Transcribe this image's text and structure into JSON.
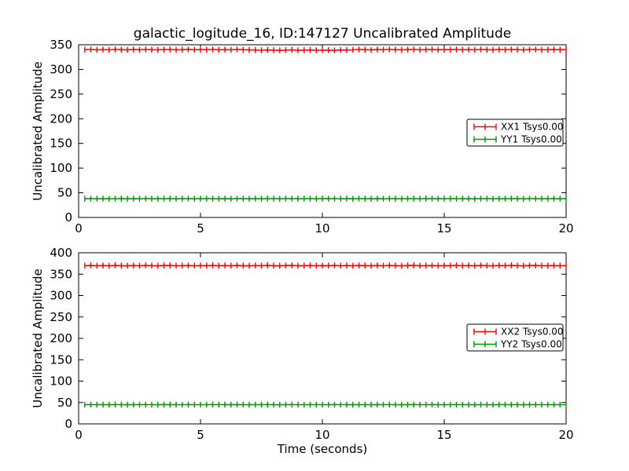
{
  "figure": {
    "title": "galactic_logitude_16, ID:147127 Uncalibrated Amplitude",
    "background": "#ffffff",
    "axis_color": "#000000"
  },
  "chart_data": [
    {
      "type": "line",
      "subplot": "top",
      "xlabel": "",
      "ylabel": "Uncalibrated Amplitude",
      "xlim": [
        0,
        20
      ],
      "ylim": [
        0,
        350
      ],
      "xticks": [
        0,
        5,
        10,
        15,
        20
      ],
      "yticks": [
        0,
        50,
        100,
        150,
        200,
        250,
        300,
        350
      ],
      "grid": false,
      "legend_position": "center right",
      "x": [
        0.25,
        0.5,
        0.75,
        1,
        1.25,
        1.5,
        1.75,
        2,
        2.25,
        2.5,
        2.75,
        3,
        3.25,
        3.5,
        3.75,
        4,
        4.25,
        4.5,
        4.75,
        5,
        5.25,
        5.5,
        5.75,
        6,
        6.25,
        6.5,
        6.75,
        7,
        7.25,
        7.5,
        7.75,
        8,
        8.25,
        8.5,
        8.75,
        9,
        9.25,
        9.5,
        9.75,
        10,
        10.25,
        10.5,
        10.75,
        11,
        11.25,
        11.5,
        11.75,
        12,
        12.25,
        12.5,
        12.75,
        13,
        13.25,
        13.5,
        13.75,
        14,
        14.25,
        14.5,
        14.75,
        15,
        15.25,
        15.5,
        15.75,
        16,
        16.25,
        16.5,
        16.75,
        17,
        17.25,
        17.5,
        17.75,
        18,
        18.25,
        18.5,
        18.75,
        19,
        19.25,
        19.5,
        19.75,
        20
      ],
      "series": [
        {
          "name": "XX1 Tsys0.00",
          "color": "#ff0000",
          "yerr": 6,
          "values": [
            340,
            340.4,
            339.7,
            340.2,
            339.6,
            340.5,
            340,
            339.5,
            340.3,
            339.8,
            340.4,
            340,
            339.6,
            340.2,
            340.5,
            339.7,
            340,
            340.3,
            339.8,
            340.1,
            340,
            340.4,
            339.7,
            340.2,
            339.6,
            340.5,
            340,
            339.5,
            339.3,
            338.8,
            339.4,
            339,
            338.6,
            339.2,
            339.5,
            338.7,
            339,
            339.3,
            338.8,
            339.1,
            339,
            338.6,
            339.4,
            339.2,
            339.6,
            340.5,
            340,
            339.5,
            340.3,
            339.8,
            340.4,
            340,
            339.6,
            340.2,
            340.5,
            339.7,
            340,
            340.3,
            339.8,
            340.1,
            340,
            340.4,
            339.7,
            340.2,
            339.6,
            340.5,
            340,
            339.5,
            340.3,
            339.8,
            340.4,
            340,
            339.6,
            340.2,
            340.5,
            339.7,
            340,
            340.3,
            339.8,
            340.1
          ]
        },
        {
          "name": "YY1 Tsys0.00",
          "color": "#009900",
          "yerr": 6,
          "values": [
            38,
            38.2,
            37.9,
            38.1,
            37.8,
            38.2,
            38,
            37.8,
            38.1,
            37.9,
            38.2,
            38,
            37.8,
            38.1,
            38.2,
            37.9,
            38,
            38.1,
            37.9,
            38,
            38,
            38.2,
            37.9,
            38.1,
            37.8,
            38.2,
            38,
            37.8,
            38.1,
            37.9,
            38.2,
            38,
            37.8,
            38.1,
            38.2,
            37.9,
            38,
            38.1,
            37.9,
            38,
            38,
            38.2,
            37.9,
            38.1,
            37.8,
            38.2,
            38,
            37.8,
            38.1,
            37.9,
            38.2,
            38,
            37.8,
            38.1,
            38.2,
            37.9,
            38,
            38.1,
            37.9,
            38,
            38,
            38.2,
            37.9,
            38.1,
            37.8,
            38.2,
            38,
            37.8,
            38.1,
            37.9,
            38.2,
            38,
            37.8,
            38.1,
            38.2,
            37.9,
            38,
            38.1,
            37.9,
            38
          ]
        }
      ]
    },
    {
      "type": "line",
      "subplot": "bottom",
      "xlabel": "Time (seconds)",
      "ylabel": "Uncalibrated Amplitude",
      "xlim": [
        0,
        20
      ],
      "ylim": [
        0,
        400
      ],
      "xticks": [
        0,
        5,
        10,
        15,
        20
      ],
      "yticks": [
        0,
        50,
        100,
        150,
        200,
        250,
        300,
        350,
        400
      ],
      "grid": false,
      "legend_position": "center right",
      "x": [
        0.25,
        0.5,
        0.75,
        1,
        1.25,
        1.5,
        1.75,
        2,
        2.25,
        2.5,
        2.75,
        3,
        3.25,
        3.5,
        3.75,
        4,
        4.25,
        4.5,
        4.75,
        5,
        5.25,
        5.5,
        5.75,
        6,
        6.25,
        6.5,
        6.75,
        7,
        7.25,
        7.5,
        7.75,
        8,
        8.25,
        8.5,
        8.75,
        9,
        9.25,
        9.5,
        9.75,
        10,
        10.25,
        10.5,
        10.75,
        11,
        11.25,
        11.5,
        11.75,
        12,
        12.25,
        12.5,
        12.75,
        13,
        13.25,
        13.5,
        13.75,
        14,
        14.25,
        14.5,
        14.75,
        15,
        15.25,
        15.5,
        15.75,
        16,
        16.25,
        16.5,
        16.75,
        17,
        17.25,
        17.5,
        17.75,
        18,
        18.25,
        18.5,
        18.75,
        19,
        19.25,
        19.5,
        19.75,
        20
      ],
      "series": [
        {
          "name": "XX2 Tsys0.00",
          "color": "#ff0000",
          "yerr": 7,
          "values": [
            370,
            370.4,
            369.7,
            370.2,
            369.6,
            370.5,
            370,
            369.5,
            370.3,
            369.8,
            370.4,
            370,
            369.6,
            370.2,
            370.5,
            369.7,
            370,
            370.3,
            369.8,
            370.1,
            370,
            370.4,
            369.7,
            370.2,
            369.6,
            370.5,
            370,
            369.5,
            370.3,
            369.8,
            370.4,
            370,
            369.6,
            370.2,
            370.5,
            369.7,
            370,
            370.3,
            369.8,
            370.1,
            370,
            370.4,
            369.7,
            370.2,
            369.6,
            370.5,
            370,
            369.5,
            370.3,
            369.8,
            370.4,
            370,
            369.6,
            370.2,
            370.5,
            369.7,
            370,
            370.3,
            369.8,
            370.1,
            370,
            370.4,
            369.7,
            370.2,
            369.6,
            370.5,
            370,
            369.5,
            370.3,
            369.8,
            370.4,
            370,
            369.6,
            370.2,
            370.5,
            369.7,
            370,
            370.3,
            369.8,
            370.1
          ]
        },
        {
          "name": "YY2 Tsys0.00",
          "color": "#009900",
          "yerr": 7,
          "values": [
            45,
            45.2,
            44.9,
            45.1,
            44.8,
            45.2,
            45,
            44.8,
            45.1,
            44.9,
            45.2,
            45,
            44.8,
            45.1,
            45.2,
            44.9,
            45,
            45.1,
            44.9,
            45,
            45,
            45.2,
            44.9,
            45.1,
            44.8,
            45.2,
            45,
            44.8,
            45.1,
            44.9,
            45.2,
            45,
            44.8,
            45.1,
            45.2,
            44.9,
            45,
            45.1,
            44.9,
            45,
            45,
            45.2,
            44.9,
            45.1,
            44.8,
            45.2,
            45,
            44.8,
            45.1,
            44.9,
            45.2,
            45,
            44.8,
            45.1,
            45.2,
            44.9,
            45,
            45.1,
            44.9,
            45,
            45,
            45.2,
            44.9,
            45.1,
            44.8,
            45.2,
            45,
            44.8,
            45.1,
            44.9,
            45.2,
            45,
            44.8,
            45.1,
            45.2,
            44.9,
            45,
            45.1,
            44.9,
            45
          ]
        }
      ]
    }
  ]
}
